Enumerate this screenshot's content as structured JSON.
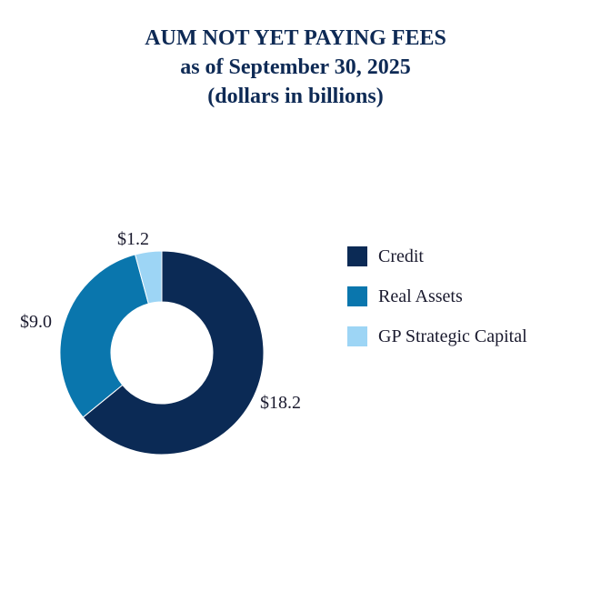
{
  "title": {
    "line1": "AUM NOT YET PAYING FEES",
    "line2": "as of September 30, 2025",
    "line3": "(dollars in billions)"
  },
  "chart_data": {
    "type": "pie",
    "donut": true,
    "categories": [
      "Credit",
      "Real Assets",
      "GP Strategic Capital"
    ],
    "values": [
      18.2,
      9.0,
      1.2
    ],
    "data_labels": [
      "$18.2",
      "$9.0",
      "$1.2"
    ],
    "colors": [
      "#0b2a55",
      "#0a76ad",
      "#9dd5f5"
    ],
    "legend_position": "right",
    "title": "AUM NOT YET PAYING FEES"
  }
}
